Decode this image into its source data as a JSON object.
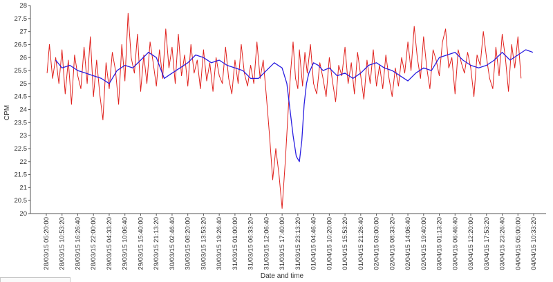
{
  "chart_data": {
    "type": "line",
    "title": "",
    "xlabel": "Date and time",
    "ylabel": "CPM",
    "ylim": [
      20,
      28
    ],
    "yticks": [
      20,
      20.5,
      21,
      21.5,
      22,
      22.5,
      23,
      23.5,
      24,
      24.5,
      25,
      25.5,
      26,
      26.5,
      27,
      27.5,
      28
    ],
    "xticks": [
      "28/03/15 05:20:00",
      "28/03/15 10:53:20",
      "28/03/15 16:26:40",
      "28/03/15 22:00:00",
      "29/03/15 04:33:20",
      "29/03/15 10:06:40",
      "29/03/15 15:40:00",
      "29/03/15 21:13:20",
      "30/03/15 02:46:40",
      "30/03/15 08:20:00",
      "30/03/15 13:53:20",
      "30/03/15 19:26:40",
      "31/03/15 01:00:00",
      "31/03/15 06:33:20",
      "31/03/15 12:06:40",
      "31/03/15 17:40:00",
      "31/03/15 23:13:20",
      "01/04/15 04:46:40",
      "01/04/15 10:20:00",
      "01/04/15 15:53:20",
      "01/04/15 21:26:40",
      "02/04/15 03:00:00",
      "02/04/15 08:33:20",
      "02/04/15 14:06:40",
      "02/04/15 19:40:00",
      "03/04/15 01:13:20",
      "03/04/15 06:46:40",
      "03/04/15 12:20:00",
      "03/04/15 17:53:20",
      "03/04/15 23:26:40",
      "04/04/15 05:00:00",
      "04/04/15 10:33:20"
    ],
    "grid": false,
    "legend": "none",
    "series": [
      {
        "kind": "raw",
        "color": "#e0201c",
        "x_tick_index": [
          0.05,
          0.2,
          0.4,
          0.6,
          0.8,
          1.0,
          1.2,
          1.4,
          1.6,
          1.8,
          2.0,
          2.2,
          2.4,
          2.6,
          2.8,
          3.0,
          3.2,
          3.4,
          3.6,
          3.8,
          4.0,
          4.2,
          4.4,
          4.6,
          4.8,
          5.0,
          5.2,
          5.4,
          5.6,
          5.8,
          6.0,
          6.2,
          6.4,
          6.6,
          6.8,
          7.0,
          7.2,
          7.4,
          7.6,
          7.8,
          8.0,
          8.2,
          8.4,
          8.6,
          8.8,
          9.0,
          9.2,
          9.4,
          9.6,
          9.8,
          10.0,
          10.2,
          10.4,
          10.6,
          10.8,
          11.0,
          11.2,
          11.4,
          11.6,
          11.8,
          12.0,
          12.2,
          12.4,
          12.6,
          12.8,
          13.0,
          13.2,
          13.4,
          13.6,
          13.8,
          14.0,
          14.2,
          14.4,
          14.6,
          14.8,
          15.0,
          15.2,
          15.4,
          15.55,
          15.7,
          15.85,
          16.0,
          16.1,
          16.2,
          16.3,
          16.45,
          16.6,
          16.8,
          17.0,
          17.2,
          17.4,
          17.6,
          17.8,
          18.0,
          18.2,
          18.4,
          18.6,
          18.8,
          19.0,
          19.2,
          19.4,
          19.6,
          19.8,
          20.0,
          20.2,
          20.4,
          20.6,
          20.8,
          21.0,
          21.2,
          21.4,
          21.6,
          21.8,
          22.0,
          22.2,
          22.4,
          22.6,
          22.8,
          23.0,
          23.2,
          23.4,
          23.6,
          23.8,
          24.0,
          24.2,
          24.4,
          24.6,
          24.8,
          25.0,
          25.2,
          25.4,
          25.6,
          25.8,
          26.0,
          26.2,
          26.4,
          26.6,
          26.8,
          27.0,
          27.2,
          27.4,
          27.6,
          27.8,
          28.0,
          28.2,
          28.4,
          28.6,
          28.8,
          29.0,
          29.2,
          29.4,
          29.6,
          29.8,
          30.0,
          30.2,
          30.4,
          30.6,
          30.8,
          30.95
        ],
        "values": [
          25.4,
          26.5,
          25.2,
          26.0,
          25.0,
          26.3,
          24.6,
          25.9,
          24.2,
          26.1,
          25.3,
          24.8,
          26.4,
          25.0,
          26.8,
          24.5,
          25.9,
          24.6,
          23.6,
          25.8,
          24.8,
          26.2,
          25.5,
          24.2,
          26.5,
          25.1,
          27.7,
          26.0,
          25.4,
          26.9,
          24.7,
          26.1,
          25.0,
          26.6,
          25.8,
          24.9,
          26.3,
          25.2,
          27.1,
          25.6,
          26.4,
          25.0,
          26.9,
          25.3,
          26.1,
          24.9,
          26.5,
          25.4,
          25.9,
          24.8,
          26.3,
          25.1,
          25.8,
          24.7,
          26.0,
          25.3,
          25.0,
          26.4,
          25.2,
          24.6,
          25.9,
          25.0,
          26.5,
          25.4,
          24.9,
          25.7,
          25.0,
          26.6,
          25.2,
          25.9,
          24.5,
          23.0,
          21.3,
          22.5,
          21.5,
          20.2,
          22.0,
          24.1,
          25.5,
          26.6,
          25.2,
          24.8,
          26.3,
          25.6,
          24.9,
          26.2,
          25.4,
          26.5,
          25.0,
          24.6,
          25.8,
          25.2,
          24.5,
          26.0,
          25.1,
          24.3,
          25.7,
          25.3,
          26.4,
          25.0,
          25.8,
          24.6,
          26.2,
          25.3,
          24.4,
          25.9,
          25.0,
          26.3,
          24.9,
          25.7,
          24.8,
          26.1,
          25.2,
          24.5,
          25.6,
          24.9,
          26.0,
          25.4,
          26.6,
          25.5,
          27.2,
          26.0,
          25.2,
          26.8,
          25.6,
          24.8,
          26.3,
          25.9,
          25.3,
          26.6,
          27.1,
          25.6,
          26.0,
          24.6,
          26.3,
          25.8,
          25.4,
          26.2,
          25.6,
          24.5,
          26.1,
          25.7,
          27.0,
          26.0,
          25.2,
          24.8,
          26.4,
          25.3,
          26.9,
          26.0,
          24.7,
          26.5,
          25.6,
          26.8,
          25.2
        ]
      },
      {
        "kind": "smoothed",
        "color": "#2a1ee0",
        "x_tick_index": [
          0.6,
          1.0,
          1.5,
          2.0,
          2.5,
          3.0,
          3.5,
          4.0,
          4.5,
          5.0,
          5.5,
          6.0,
          6.5,
          7.0,
          7.5,
          8.0,
          8.5,
          9.0,
          9.5,
          10.0,
          10.5,
          11.0,
          11.5,
          12.0,
          12.5,
          13.0,
          13.5,
          14.0,
          14.5,
          15.0,
          15.3,
          15.5,
          15.7,
          15.9,
          16.1,
          16.25,
          16.4,
          16.55,
          16.7,
          16.85,
          17.0,
          17.3,
          17.6,
          18.0,
          18.5,
          19.0,
          19.5,
          20.0,
          20.5,
          21.0,
          21.5,
          22.0,
          22.5,
          23.0,
          23.5,
          24.0,
          24.5,
          25.0,
          25.5,
          26.0,
          26.5,
          27.0,
          27.5,
          28.0,
          28.5,
          29.0,
          29.5,
          30.0,
          30.5,
          30.95
        ],
        "values": [
          25.9,
          25.6,
          25.7,
          25.5,
          25.4,
          25.3,
          25.2,
          25.0,
          25.5,
          25.7,
          25.6,
          25.9,
          26.2,
          26.0,
          25.2,
          25.4,
          25.6,
          25.8,
          26.1,
          26.0,
          25.8,
          25.9,
          25.7,
          25.6,
          25.5,
          25.2,
          25.2,
          25.5,
          25.8,
          25.6,
          25.0,
          24.0,
          23.0,
          22.2,
          22.0,
          22.8,
          24.2,
          25.0,
          25.4,
          25.6,
          25.8,
          25.7,
          25.5,
          25.6,
          25.3,
          25.4,
          25.2,
          25.4,
          25.7,
          25.8,
          25.6,
          25.5,
          25.3,
          25.1,
          25.4,
          25.6,
          25.5,
          26.0,
          26.1,
          26.2,
          25.9,
          25.7,
          25.6,
          25.7,
          25.9,
          26.2,
          25.9,
          26.1,
          26.3,
          26.2
        ]
      }
    ]
  }
}
